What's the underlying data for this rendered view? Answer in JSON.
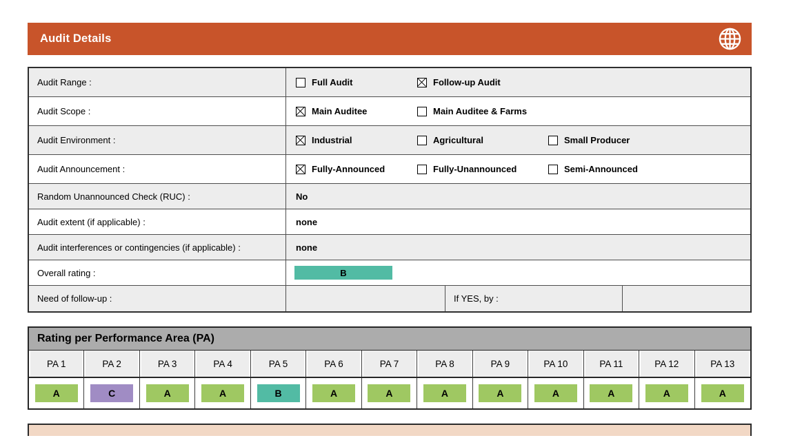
{
  "header": {
    "title": "Audit Details"
  },
  "audit_table": {
    "rows": [
      {
        "type": "checkboxes",
        "label": "Audit Range :",
        "options": [
          {
            "label": "Full Audit",
            "checked": false
          },
          {
            "label": "Follow-up Audit",
            "checked": true
          }
        ]
      },
      {
        "type": "checkboxes",
        "label": "Audit Scope :",
        "options": [
          {
            "label": "Main Auditee",
            "checked": true
          },
          {
            "label": "Main Auditee & Farms",
            "checked": false
          }
        ]
      },
      {
        "type": "checkboxes",
        "label": "Audit Environment :",
        "options": [
          {
            "label": "Industrial",
            "checked": true
          },
          {
            "label": "Agricultural",
            "checked": false
          },
          {
            "label": "Small Producer",
            "checked": false
          }
        ]
      },
      {
        "type": "checkboxes",
        "label": "Audit Announcement :",
        "options": [
          {
            "label": "Fully-Announced",
            "checked": true
          },
          {
            "label": "Fully-Unannounced",
            "checked": false
          },
          {
            "label": "Semi-Announced",
            "checked": false
          }
        ]
      },
      {
        "type": "text",
        "label": "Random Unannounced Check (RUC) :",
        "value": "No"
      },
      {
        "type": "text",
        "label": "Audit extent (if applicable) :",
        "value": "none"
      },
      {
        "type": "text",
        "label": "Audit interferences or contingencies (if applicable) :",
        "value": "none"
      },
      {
        "type": "rating",
        "label": "Overall rating :",
        "value": "B"
      },
      {
        "type": "followup",
        "label": "Need of follow-up :",
        "value": "",
        "if_yes_label": "If YES, by :",
        "if_yes_value": ""
      }
    ]
  },
  "pa_section": {
    "title": "Rating per Performance Area (PA)",
    "columns": [
      "PA 1",
      "PA 2",
      "PA 3",
      "PA 4",
      "PA 5",
      "PA 6",
      "PA 7",
      "PA 8",
      "PA 9",
      "PA 10",
      "PA 11",
      "PA 12",
      "PA 13"
    ],
    "ratings": [
      "A",
      "C",
      "A",
      "A",
      "B",
      "A",
      "A",
      "A",
      "A",
      "A",
      "A",
      "A",
      "A"
    ]
  },
  "rating_colors": {
    "A": "#9FC862",
    "B": "#52BBA4",
    "C": "#A08CC4"
  },
  "theme": {
    "header_bg": "#C8542A",
    "section_header_bg": "#ACACAC",
    "row_shade": "#EDEDED",
    "bottom_strip_bg": "#F2D8C5"
  }
}
